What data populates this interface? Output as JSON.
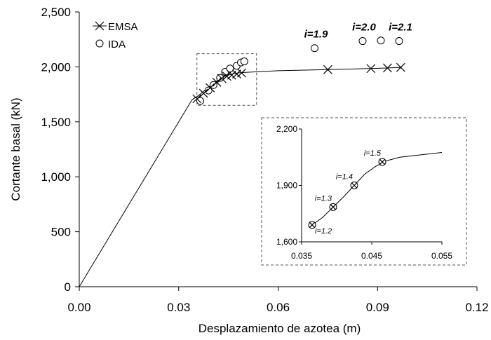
{
  "chart_data": {
    "type": "scatter",
    "title": "",
    "xlabel": "Desplazamiento de azotea (m)",
    "ylabel": "Cortante basal (kN)",
    "xlim": [
      0.0,
      0.12
    ],
    "ylim": [
      0,
      2500
    ],
    "xticks": [
      "0.00",
      "0.03",
      "0.06",
      "0.09",
      "0.12"
    ],
    "yticks": [
      "0",
      "500",
      "1,000",
      "1,500",
      "2,000",
      "2,500"
    ],
    "xtick_values": [
      0.0,
      0.03,
      0.06,
      0.09,
      0.12
    ],
    "ytick_values": [
      0,
      500,
      1000,
      1500,
      2000,
      2500
    ],
    "grid": false,
    "legend_position": "top-left",
    "colors": {
      "line": "#000000",
      "markers": "#000000",
      "box": "#555555"
    },
    "series": [
      {
        "name": "EMSA",
        "marker": "x",
        "x": [
          0.0355,
          0.0375,
          0.0395,
          0.0415,
          0.043,
          0.0445,
          0.046,
          0.0475,
          0.049,
          0.075,
          0.088,
          0.093,
          0.097
        ],
        "y": [
          1710,
          1760,
          1810,
          1860,
          1895,
          1915,
          1925,
          1935,
          1945,
          1975,
          1985,
          1990,
          1995
        ]
      },
      {
        "name": "IDA",
        "marker": "o",
        "x": [
          0.0365,
          0.039,
          0.0405,
          0.0425,
          0.044,
          0.0455,
          0.0475,
          0.0488,
          0.0498,
          0.071,
          0.0855,
          0.091,
          0.0965
        ],
        "y": [
          1690,
          1785,
          1835,
          1900,
          1955,
          1985,
          2010,
          2040,
          2050,
          2170,
          2235,
          2240,
          2235
        ]
      },
      {
        "name": "",
        "marker": "none",
        "x": [
          0.0,
          0.034,
          0.036,
          0.038,
          0.04,
          0.042,
          0.044,
          0.046,
          0.048,
          0.05,
          0.06,
          0.075,
          0.088,
          0.097
        ],
        "y": [
          0,
          1700,
          1740,
          1790,
          1840,
          1885,
          1915,
          1935,
          1945,
          1950,
          1965,
          1975,
          1985,
          1995
        ]
      }
    ],
    "annotations": [
      {
        "text": "i=1.9",
        "x": 0.071,
        "y": 2170
      },
      {
        "text": "i=2.0",
        "x": 0.0855,
        "y": 2235
      },
      {
        "text": "i=2.1",
        "x": 0.0965,
        "y": 2235
      }
    ],
    "zoom_box": {
      "xlim": [
        0.0355,
        0.0535
      ],
      "ylim": [
        1650,
        2120
      ]
    },
    "inset": {
      "xlim": [
        0.035,
        0.055
      ],
      "ylim": [
        1600,
        2200
      ],
      "xticks": [
        "0.035",
        "0.045",
        "0.055"
      ],
      "xtick_values": [
        0.035,
        0.045,
        0.055
      ],
      "yticks": [
        "1,600",
        "1,900",
        "2,200"
      ],
      "ytick_values": [
        1600,
        1900,
        2200
      ],
      "line": {
        "x": [
          0.0365,
          0.038,
          0.0395,
          0.041,
          0.0425,
          0.044,
          0.0455,
          0.047,
          0.049,
          0.055
        ],
        "y": [
          1690,
          1730,
          1785,
          1840,
          1900,
          1960,
          2000,
          2030,
          2050,
          2075
        ]
      },
      "points": {
        "x": [
          0.0365,
          0.0395,
          0.0425,
          0.0465
        ],
        "y": [
          1690,
          1785,
          1900,
          2025
        ]
      },
      "annotations": [
        {
          "text": "i=1.2",
          "x": 0.0365,
          "y": 1690,
          "pos": "below-right"
        },
        {
          "text": "i=1.3",
          "x": 0.0395,
          "y": 1785,
          "pos": "above-left"
        },
        {
          "text": "i=1.4",
          "x": 0.0425,
          "y": 1900,
          "pos": "above-left"
        },
        {
          "text": "i=1.5",
          "x": 0.0465,
          "y": 2025,
          "pos": "above-left"
        }
      ]
    }
  }
}
